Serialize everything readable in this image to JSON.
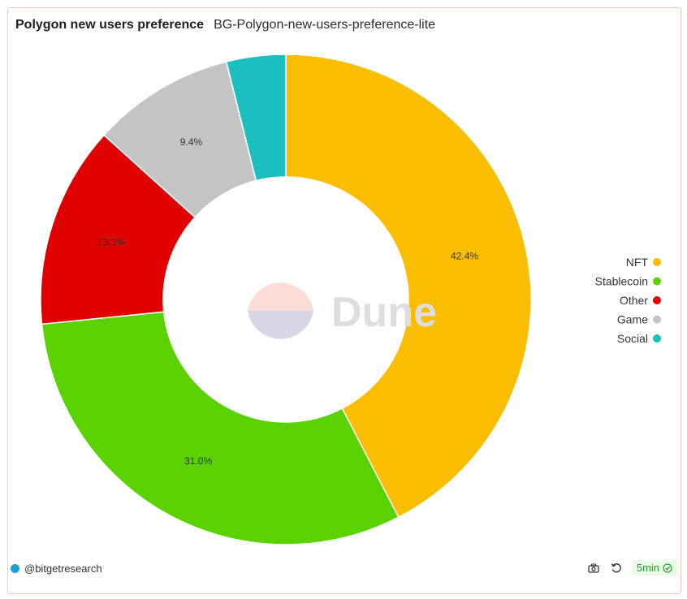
{
  "header": {
    "title": "Polygon new users preference",
    "subtitle": "BG-Polygon-new-users-preference-lite"
  },
  "watermark": {
    "text": "Dune"
  },
  "chart_data": {
    "type": "pie",
    "donut": true,
    "categories": [
      "NFT",
      "Stablecoin",
      "Other",
      "Game",
      "Social"
    ],
    "values": [
      42.4,
      31.0,
      13.3,
      9.4,
      3.9
    ],
    "data_labels": [
      "42.4%",
      "31.0%",
      "13.3%",
      "9.4%",
      ""
    ],
    "colors": [
      "#fbbd00",
      "#5ad200",
      "#e00000",
      "#c4c4c4",
      "#1bbfbd"
    ],
    "legend_position": "right"
  },
  "footer": {
    "author": "@bitgetresearch",
    "refresh": "5min"
  },
  "icons": {
    "camera": "camera-icon",
    "refresh": "refresh-icon",
    "check": "check-circle-icon"
  }
}
